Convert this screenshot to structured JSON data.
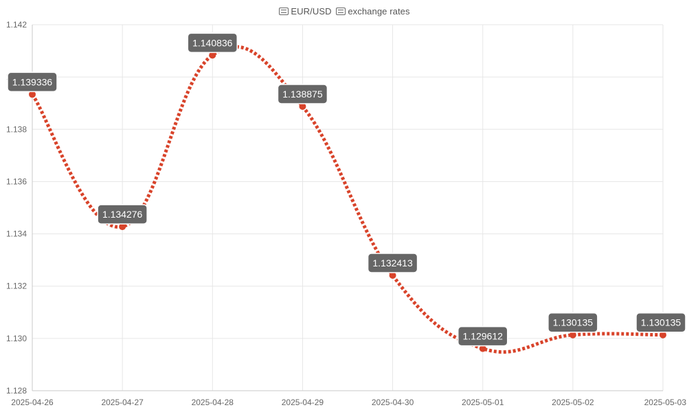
{
  "chart_data": {
    "type": "line",
    "title": "EUR/USD exchange rates",
    "title_prefix_icon": "eu-flag-icon",
    "title_mid_icon": "us-flag-icon",
    "title_pair": "EUR/USD",
    "title_rest": "exchange rates",
    "x": [
      "2025-04-26",
      "2025-04-27",
      "2025-04-28",
      "2025-04-29",
      "2025-04-30",
      "2025-05-01",
      "2025-05-02",
      "2025-05-03"
    ],
    "series": [
      {
        "values": [
          1.139336,
          1.134276,
          1.140836,
          1.138875,
          1.132413,
          1.129612,
          1.130135,
          1.130135
        ],
        "color": "#d8432a",
        "line_style": "dotted",
        "smooth": true
      }
    ],
    "data_labels": [
      "1.139336",
      "1.134276",
      "1.140836",
      "1.138875",
      "1.132413",
      "1.129612",
      "1.130135",
      "1.130135"
    ],
    "y_ticks": [
      "1.128",
      "1.130",
      "1.132",
      "1.134",
      "1.136",
      "1.138",
      "1.140",
      "1.142"
    ],
    "y_tick_values": [
      1.128,
      1.13,
      1.132,
      1.134,
      1.136,
      1.138,
      1.14,
      1.142
    ],
    "ylim": [
      1.128,
      1.142
    ],
    "xlabel": "",
    "ylabel": "",
    "grid": true,
    "label_box_color": "#666666",
    "label_text_color": "#ffffff"
  }
}
